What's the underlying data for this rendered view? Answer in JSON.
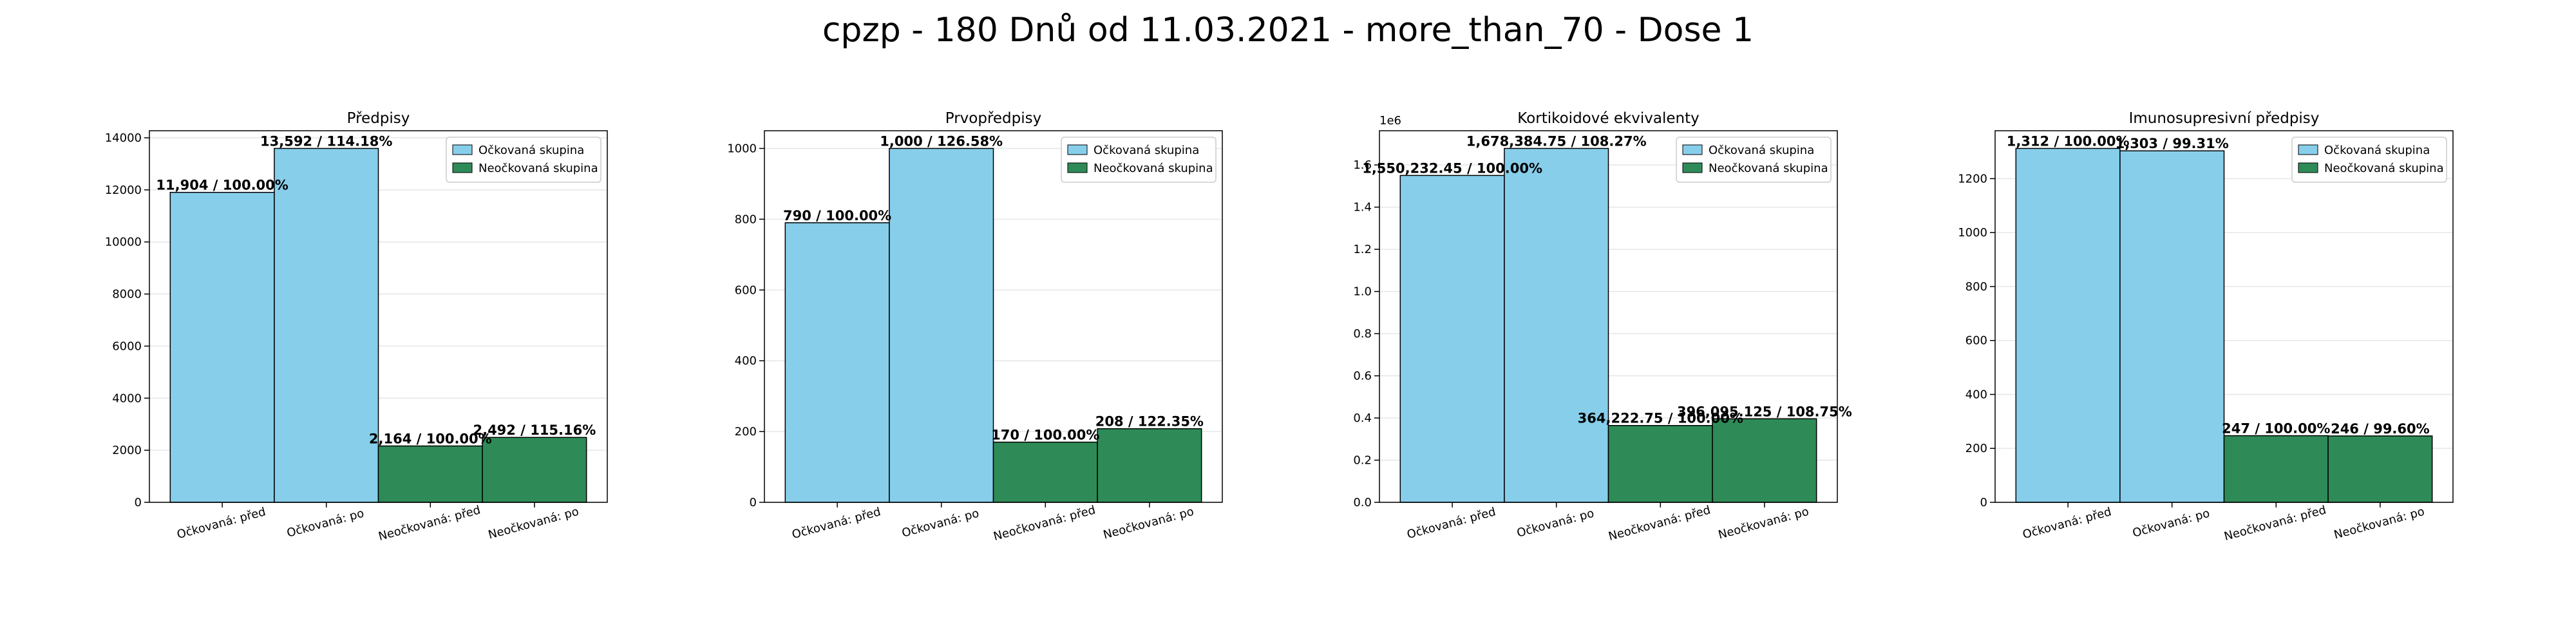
{
  "figure": {
    "suptitle": "cpzp - 180 Dnů od 11.03.2021 - more_than_70 - Dose 1"
  },
  "colors": {
    "vaccinated": "#87ceeb",
    "unvaccinated": "#2e8b57",
    "edge": "#000000",
    "grid": "#e6e6e6"
  },
  "legend": {
    "placement": "upper right",
    "entries": [
      "Očkovaná skupina",
      "Neočkovaná skupina"
    ]
  },
  "chart_data": [
    {
      "type": "bar",
      "title": "Předpisy",
      "categories": [
        "Očkovaná: před",
        "Očkovaná: po",
        "Neočkovaná: před",
        "Neočkovaná: po"
      ],
      "values": [
        11904,
        13592,
        2164,
        2492
      ],
      "groups": [
        "vaccinated",
        "vaccinated",
        "unvaccinated",
        "unvaccinated"
      ],
      "labels": [
        "11,904 / 100.00%",
        "13,592 / 114.18%",
        "2,164 / 100.00%",
        "2,492 / 115.16%"
      ],
      "yticks": [
        0,
        2000,
        4000,
        6000,
        8000,
        10000,
        12000,
        14000
      ],
      "ytick_labels": [
        "0",
        "2000",
        "4000",
        "6000",
        "8000",
        "10000",
        "12000",
        "14000"
      ],
      "offset_text": "",
      "ylim": [
        0,
        14271.6
      ],
      "grid": true
    },
    {
      "type": "bar",
      "title": "Prvopředpisy",
      "categories": [
        "Očkovaná: před",
        "Očkovaná: po",
        "Neočkovaná: před",
        "Neočkovaná: po"
      ],
      "values": [
        790,
        1000,
        170,
        208
      ],
      "groups": [
        "vaccinated",
        "vaccinated",
        "unvaccinated",
        "unvaccinated"
      ],
      "labels": [
        "790 / 100.00%",
        "1,000 / 126.58%",
        "170 / 100.00%",
        "208 / 122.35%"
      ],
      "yticks": [
        0,
        200,
        400,
        600,
        800,
        1000
      ],
      "ytick_labels": [
        "0",
        "200",
        "400",
        "600",
        "800",
        "1000"
      ],
      "offset_text": "",
      "ylim": [
        0,
        1050
      ],
      "grid": true
    },
    {
      "type": "bar",
      "title": "Kortikoidové ekvivalenty",
      "categories": [
        "Očkovaná: před",
        "Očkovaná: po",
        "Neočkovaná: před",
        "Neočkovaná: po"
      ],
      "values": [
        1550232.45,
        1678384.75,
        364222.75,
        396095.125
      ],
      "groups": [
        "vaccinated",
        "vaccinated",
        "unvaccinated",
        "unvaccinated"
      ],
      "labels": [
        "1,550,232.45 / 100.00%",
        "1,678,384.75 / 108.27%",
        "364,222.75 / 100.00%",
        "396,095.125 / 108.75%"
      ],
      "yticks": [
        0,
        200000,
        400000,
        600000,
        800000,
        1000000,
        1200000,
        1400000,
        1600000
      ],
      "ytick_labels": [
        "0.0",
        "0.2",
        "0.4",
        "0.6",
        "0.8",
        "1.0",
        "1.2",
        "1.4",
        "1.6"
      ],
      "offset_text": "1e6",
      "ylim": [
        0,
        1762304
      ],
      "grid": true
    },
    {
      "type": "bar",
      "title": "Imunosupresivní předpisy",
      "categories": [
        "Očkovaná: před",
        "Očkovaná: po",
        "Neočkovaná: před",
        "Neočkovaná: po"
      ],
      "values": [
        1312,
        1303,
        247,
        246
      ],
      "groups": [
        "vaccinated",
        "vaccinated",
        "unvaccinated",
        "unvaccinated"
      ],
      "labels": [
        "1,312 / 100.00%",
        "1,303 / 99.31%",
        "247 / 100.00%",
        "246 / 99.60%"
      ],
      "yticks": [
        0,
        200,
        400,
        600,
        800,
        1000,
        1200
      ],
      "ytick_labels": [
        "0",
        "200",
        "400",
        "600",
        "800",
        "1000",
        "1200"
      ],
      "offset_text": "",
      "ylim": [
        0,
        1377.6
      ],
      "grid": true
    }
  ]
}
